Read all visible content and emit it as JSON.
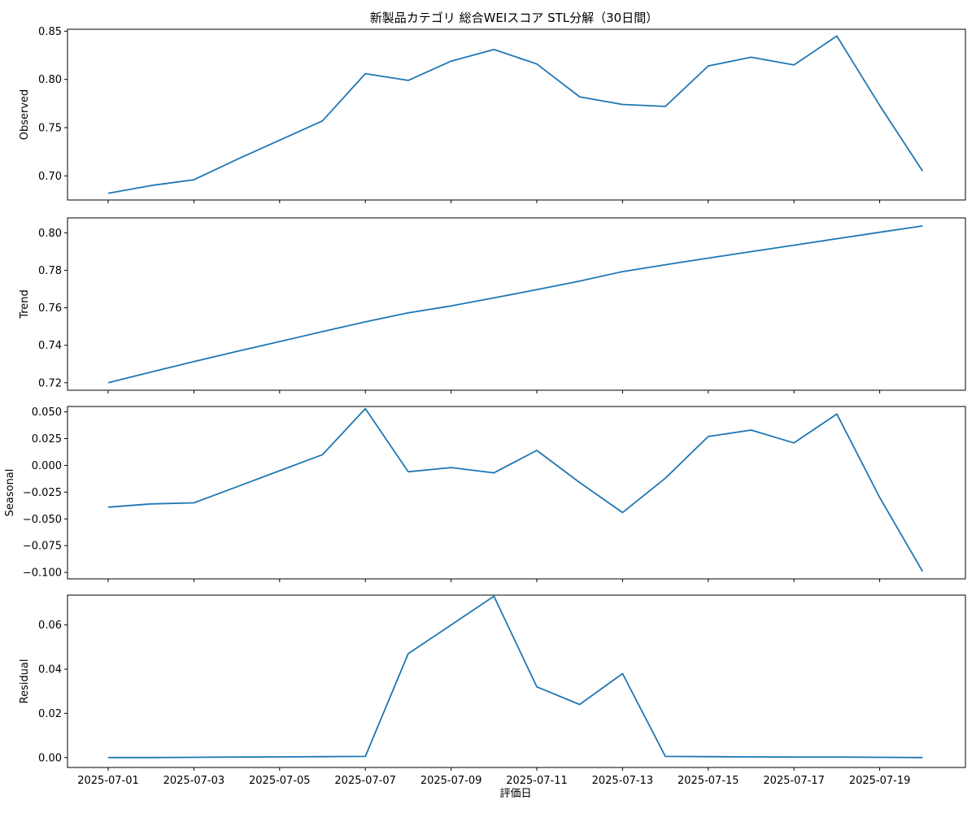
{
  "title": "新製品カテゴリ 総合WEIスコア STL分解（30日間）",
  "x_axis": {
    "label": "評価日",
    "tick_labels": [
      "2025-07-01",
      "2025-07-03",
      "2025-07-05",
      "2025-07-07",
      "2025-07-09",
      "2025-07-11",
      "2025-07-13",
      "2025-07-15",
      "2025-07-17",
      "2025-07-19"
    ]
  },
  "chart_data": [
    {
      "type": "line",
      "ylabel": "Observed",
      "ylim": [
        0.675,
        0.852
      ],
      "yticks": [
        0.7,
        0.75,
        0.8,
        0.85
      ],
      "ytick_labels": [
        "0.70",
        "0.75",
        "0.80",
        "0.85"
      ],
      "color": "#1f77b4",
      "x": [
        "2025-07-01",
        "2025-07-02",
        "2025-07-03",
        "2025-07-04",
        "2025-07-05",
        "2025-07-06",
        "2025-07-07",
        "2025-07-08",
        "2025-07-09",
        "2025-07-10",
        "2025-07-11",
        "2025-07-12",
        "2025-07-13",
        "2025-07-14",
        "2025-07-15",
        "2025-07-16",
        "2025-07-17",
        "2025-07-18",
        "2025-07-19",
        "2025-07-20"
      ],
      "values": [
        0.682,
        0.69,
        0.696,
        0.717,
        0.737,
        0.757,
        0.806,
        0.799,
        0.819,
        0.831,
        0.816,
        0.782,
        0.774,
        0.772,
        0.814,
        0.823,
        0.815,
        0.845,
        0.773,
        0.705
      ]
    },
    {
      "type": "line",
      "ylabel": "Trend",
      "ylim": [
        0.716,
        0.808
      ],
      "yticks": [
        0.72,
        0.74,
        0.76,
        0.78,
        0.8
      ],
      "ytick_labels": [
        "0.72",
        "0.74",
        "0.76",
        "0.78",
        "0.80"
      ],
      "color": "#1f77b4",
      "x": [
        "2025-07-01",
        "2025-07-02",
        "2025-07-03",
        "2025-07-04",
        "2025-07-05",
        "2025-07-06",
        "2025-07-07",
        "2025-07-08",
        "2025-07-09",
        "2025-07-10",
        "2025-07-11",
        "2025-07-12",
        "2025-07-13",
        "2025-07-14",
        "2025-07-15",
        "2025-07-16",
        "2025-07-17",
        "2025-07-18",
        "2025-07-19",
        "2025-07-20"
      ],
      "values": [
        0.72,
        0.7257,
        0.7313,
        0.7367,
        0.742,
        0.7473,
        0.7525,
        0.7573,
        0.761,
        0.7653,
        0.7697,
        0.7743,
        0.7793,
        0.783,
        0.7865,
        0.79,
        0.7934,
        0.7969,
        0.8003,
        0.8037
      ]
    },
    {
      "type": "line",
      "ylabel": "Seasonal",
      "ylim": [
        -0.106,
        0.055
      ],
      "yticks": [
        -0.1,
        -0.075,
        -0.05,
        -0.025,
        0.0,
        0.025,
        0.05
      ],
      "ytick_labels": [
        "−0.100",
        "−0.075",
        "−0.050",
        "−0.025",
        "0.000",
        "0.025",
        "0.050"
      ],
      "color": "#1f77b4",
      "x": [
        "2025-07-01",
        "2025-07-02",
        "2025-07-03",
        "2025-07-04",
        "2025-07-05",
        "2025-07-06",
        "2025-07-07",
        "2025-07-08",
        "2025-07-09",
        "2025-07-10",
        "2025-07-11",
        "2025-07-12",
        "2025-07-13",
        "2025-07-14",
        "2025-07-15",
        "2025-07-16",
        "2025-07-17",
        "2025-07-18",
        "2025-07-19",
        "2025-07-20"
      ],
      "values": [
        -0.039,
        -0.036,
        -0.035,
        -0.02,
        -0.005,
        0.01,
        0.053,
        -0.006,
        -0.002,
        -0.007,
        0.014,
        -0.016,
        -0.044,
        -0.012,
        0.027,
        0.033,
        0.021,
        0.048,
        -0.03,
        -0.099
      ]
    },
    {
      "type": "line",
      "ylabel": "Residual",
      "ylim": [
        -0.0045,
        0.0735
      ],
      "yticks": [
        0.0,
        0.02,
        0.04,
        0.06
      ],
      "ytick_labels": [
        "0.00",
        "0.02",
        "0.04",
        "0.06"
      ],
      "color": "#1f77b4",
      "x": [
        "2025-07-01",
        "2025-07-02",
        "2025-07-03",
        "2025-07-04",
        "2025-07-05",
        "2025-07-06",
        "2025-07-07",
        "2025-07-08",
        "2025-07-09",
        "2025-07-10",
        "2025-07-11",
        "2025-07-12",
        "2025-07-13",
        "2025-07-14",
        "2025-07-15",
        "2025-07-16",
        "2025-07-17",
        "2025-07-18",
        "2025-07-19",
        "2025-07-20"
      ],
      "values": [
        0.0,
        0.0,
        0.0001,
        0.0002,
        0.0003,
        0.0004,
        0.0005,
        0.047,
        0.06,
        0.073,
        0.032,
        0.024,
        0.038,
        0.0005,
        0.0004,
        0.0003,
        0.0002,
        0.0002,
        0.0001,
        0.0
      ]
    }
  ]
}
